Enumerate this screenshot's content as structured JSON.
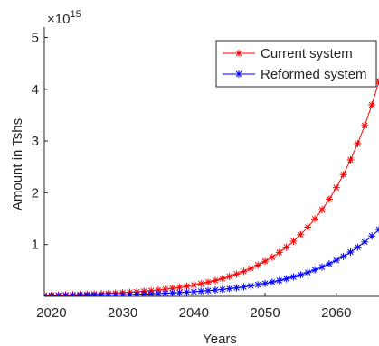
{
  "chart_data": {
    "type": "line",
    "xlabel": "Years",
    "ylabel": "Amount in Tshs",
    "xlim": [
      2019,
      2066
    ],
    "ylim": [
      0,
      5200000000000000.0
    ],
    "x_ticks": [
      2020,
      2030,
      2040,
      2050,
      2060
    ],
    "x_tick_labels": [
      "2020",
      "2030",
      "2040",
      "2050",
      "2060"
    ],
    "y_ticks": [
      1000000000000000.0,
      2000000000000000.0,
      3000000000000000.0,
      4000000000000000.0,
      5000000000000000.0
    ],
    "y_tick_labels": [
      "1",
      "2",
      "3",
      "4",
      "5"
    ],
    "y_exponent": {
      "base": "×10",
      "power": "15"
    },
    "grid": false,
    "legend_position": "top-right",
    "marker": "asterisk",
    "series": [
      {
        "name": "Current system",
        "color": "#ff0000",
        "x": [
          2019,
          2020,
          2021,
          2022,
          2023,
          2024,
          2025,
          2026,
          2027,
          2028,
          2029,
          2030,
          2031,
          2032,
          2033,
          2034,
          2035,
          2036,
          2037,
          2038,
          2039,
          2040,
          2041,
          2042,
          2043,
          2044,
          2045,
          2046,
          2047,
          2048,
          2049,
          2050,
          2051,
          2052,
          2053,
          2054,
          2055,
          2056,
          2057,
          2058,
          2059,
          2060,
          2061,
          2062,
          2063,
          2064,
          2065,
          2066
        ],
        "values": [
          20000000000000.0,
          22000000000000.0,
          25000000000000.0,
          28000000000000.0,
          31000000000000.0,
          35000000000000.0,
          39000000000000.0,
          44000000000000.0,
          49000000000000.0,
          55000000000000.0,
          62000000000000.0,
          69000000000000.0,
          78000000000000.0,
          87000000000000.0,
          98000000000000.0,
          110000000000000.0,
          123000000000000.0,
          138000000000000.0,
          154000000000000.0,
          173000000000000.0,
          194000000000000.0,
          217000000000000.0,
          244000000000000.0,
          273000000000000.0,
          306000000000000.0,
          342000000000000.0,
          384000000000000.0,
          430000000000000.0,
          481000000000000.0,
          539000000000000.0,
          604000000000000.0,
          676000000000000.0,
          757000000000000.0,
          848000000000000.0,
          950000000000000.0,
          1064000000000000.0,
          1192000000000000.0,
          1335000000000000.0,
          1495000000000000.0,
          1674000000000000.0,
          1875000000000000.0,
          2100000000000000.0,
          2352000000000000.0,
          2635000000000000.0,
          2950000000000000.0,
          3300000000000000.0,
          3700000000000000.0,
          4150000000000000.0
        ]
      },
      {
        "name": "Reformed system",
        "color": "#0000ff",
        "x": [
          2019,
          2020,
          2021,
          2022,
          2023,
          2024,
          2025,
          2026,
          2027,
          2028,
          2029,
          2030,
          2031,
          2032,
          2033,
          2034,
          2035,
          2036,
          2037,
          2038,
          2039,
          2040,
          2041,
          2042,
          2043,
          2044,
          2045,
          2046,
          2047,
          2048,
          2049,
          2050,
          2051,
          2052,
          2053,
          2054,
          2055,
          2056,
          2057,
          2058,
          2059,
          2060,
          2061,
          2062,
          2063,
          2064,
          2065,
          2066
        ],
        "values": [
          10000000000000.0,
          11000000000000.0,
          12000000000000.0,
          14000000000000.0,
          15000000000000.0,
          17000000000000.0,
          19000000000000.0,
          21000000000000.0,
          23000000000000.0,
          26000000000000.0,
          29000000000000.0,
          32000000000000.0,
          35000000000000.0,
          39000000000000.0,
          43000000000000.0,
          48000000000000.0,
          53000000000000.0,
          59000000000000.0,
          65000000000000.0,
          72000000000000.0,
          80000000000000.0,
          89000000000000.0,
          98000000000000.0,
          109000000000000.0,
          121000000000000.0,
          134000000000000.0,
          148000000000000.0,
          164000000000000.0,
          182000000000000.0,
          202000000000000.0,
          224000000000000.0,
          248000000000000.0,
          275000000000000.0,
          305000000000000.0,
          338000000000000.0,
          375000000000000.0,
          415000000000000.0,
          460000000000000.0,
          510000000000000.0,
          566000000000000.0,
          627000000000000.0,
          696000000000000.0,
          771000000000000.0,
          855000000000000.0,
          948000000000000.0,
          1050000000000000.0,
          1165000000000000.0,
          1290000000000000.0
        ]
      }
    ]
  }
}
